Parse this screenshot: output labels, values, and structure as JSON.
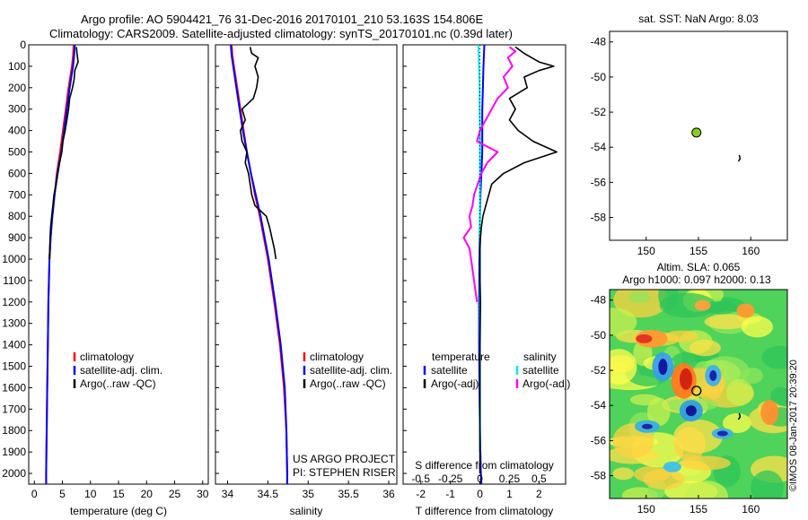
{
  "header": {
    "line1": "Argo profile: AO 5904421_76 31-Dec-2016 20170101_210 53.163S 154.806E",
    "line2": "Climatology: CARS2009. Satellite-adjusted climatology: synTS_20170101.nc (0.39d later)"
  },
  "credit": {
    "project": "US ARGO PROJECT",
    "pi": "PI: STEPHEN RISER",
    "copyright": "©IMOS 08-Jan-2017 20:39:20"
  },
  "colors": {
    "climatology": "#ff0000",
    "satellite": "#0000ff",
    "argo": "#000000",
    "s_satellite": "#00e5e5",
    "s_argo": "#ff00ff",
    "marker_fill": "#88cc22"
  },
  "chart_data": [
    {
      "type": "line",
      "xlabel": "temperature (deg C)",
      "ylabel": "",
      "xlim": [
        -1,
        31
      ],
      "ylim": [
        2050,
        0
      ],
      "xticks": [
        0,
        5,
        10,
        15,
        20,
        25,
        30
      ],
      "yticks": [
        0,
        100,
        200,
        300,
        400,
        500,
        600,
        700,
        800,
        900,
        1000,
        1100,
        1200,
        1300,
        1400,
        1500,
        1600,
        1700,
        1800,
        1900,
        2000
      ],
      "legend": [
        "climatology",
        "satellite-adj. clim.",
        "Argo(..raw -QC)"
      ],
      "legend_position": "lower-middle",
      "series": [
        {
          "name": "climatology",
          "color": "#ff0000",
          "depth": [
            0,
            50,
            100,
            200,
            300,
            400,
            500,
            600,
            700,
            800,
            900,
            1000,
            1200,
            1400,
            1600,
            1800,
            2000,
            2050
          ],
          "values": [
            7.0,
            6.9,
            6.7,
            6.1,
            5.6,
            5.1,
            4.6,
            4.0,
            3.6,
            3.2,
            2.9,
            2.7,
            2.5,
            2.4,
            2.3,
            2.2,
            2.1,
            2.1
          ]
        },
        {
          "name": "satellite-adj. clim.",
          "color": "#0000ff",
          "depth": [
            0,
            50,
            100,
            200,
            300,
            400,
            500,
            600,
            700,
            800,
            900,
            1000,
            1200,
            1400,
            1600,
            1800,
            2000,
            2050
          ],
          "values": [
            7.2,
            7.1,
            6.9,
            6.3,
            5.8,
            5.3,
            4.8,
            4.1,
            3.6,
            3.2,
            2.9,
            2.7,
            2.5,
            2.4,
            2.3,
            2.2,
            2.1,
            2.1
          ]
        },
        {
          "name": "Argo(..raw -QC)",
          "color": "#000000",
          "depth": [
            10,
            40,
            80,
            120,
            160,
            200,
            250,
            300,
            350,
            400,
            450,
            500,
            550,
            600,
            650,
            700,
            750,
            800,
            850,
            900,
            1000
          ],
          "values": [
            7.5,
            7.6,
            7.8,
            7.2,
            7.1,
            6.8,
            6.3,
            6.1,
            5.8,
            5.5,
            5.1,
            4.9,
            4.5,
            4.2,
            3.9,
            3.5,
            3.3,
            3.1,
            2.9,
            2.8,
            2.7
          ]
        }
      ]
    },
    {
      "type": "line",
      "xlabel": "salinity",
      "ylabel": "",
      "xlim": [
        33.85,
        36.1
      ],
      "ylim": [
        2050,
        0
      ],
      "xticks": [
        34,
        34.5,
        35,
        35.5,
        36
      ],
      "legend": [
        "climatology",
        "satellite-adj. clim.",
        "Argo(..raw -QC)"
      ],
      "legend_position": "lower-right",
      "series": [
        {
          "name": "climatology",
          "color": "#ff0000",
          "depth": [
            0,
            50,
            100,
            200,
            300,
            400,
            500,
            600,
            700,
            800,
            900,
            1000,
            1200,
            1400,
            1600,
            1800,
            2000,
            2050
          ],
          "values": [
            34.05,
            34.06,
            34.08,
            34.12,
            34.16,
            34.2,
            34.24,
            34.29,
            34.34,
            34.4,
            34.45,
            34.5,
            34.58,
            34.65,
            34.7,
            34.73,
            34.74,
            34.74
          ]
        },
        {
          "name": "satellite-adj. clim.",
          "color": "#0000ff",
          "depth": [
            0,
            50,
            100,
            200,
            300,
            400,
            500,
            600,
            700,
            800,
            900,
            1000,
            1200,
            1400,
            1600,
            1800,
            2000,
            2050
          ],
          "values": [
            34.04,
            34.05,
            34.07,
            34.11,
            34.15,
            34.19,
            34.24,
            34.29,
            34.35,
            34.41,
            34.46,
            34.51,
            34.59,
            34.66,
            34.71,
            34.73,
            34.74,
            34.74
          ]
        },
        {
          "name": "Argo(..raw -QC)",
          "color": "#000000",
          "depth": [
            10,
            40,
            60,
            100,
            150,
            200,
            250,
            300,
            350,
            400,
            450,
            500,
            550,
            600,
            700,
            750,
            800,
            850,
            900,
            950,
            1000
          ],
          "values": [
            34.28,
            34.3,
            34.38,
            34.34,
            34.38,
            34.36,
            34.32,
            34.18,
            34.22,
            34.16,
            34.18,
            34.24,
            34.22,
            34.26,
            34.3,
            34.34,
            34.48,
            34.52,
            34.55,
            34.58,
            34.6
          ]
        }
      ]
    },
    {
      "type": "line",
      "xlabel": "T difference from climatology",
      "xlabel2": "S difference from climatology",
      "xlim": [
        -2.6,
        2.9
      ],
      "ylim": [
        2050,
        0
      ],
      "xticks": [
        -2,
        -1,
        0,
        1,
        2
      ],
      "xticks_s": [
        "-0.5",
        "-0.25",
        "0",
        "0.25",
        "0.5"
      ],
      "legend_headers": [
        "temperature",
        "salinity"
      ],
      "legend": [
        "satellite",
        "Argo(-adj)",
        "satellite",
        "Argo(-adj)"
      ],
      "series": [
        {
          "name": "temperature satellite",
          "color": "#0000ff",
          "depth": [
            0,
            100,
            200,
            300,
            400,
            500,
            600,
            700,
            800,
            1000,
            1200,
            1400,
            1600,
            1800,
            2000,
            2050
          ],
          "values": [
            0.15,
            0.12,
            0.1,
            0.08,
            0.08,
            0.08,
            0.05,
            0.02,
            0.0,
            -0.02,
            -0.03,
            -0.03,
            -0.02,
            0.0,
            0.03,
            0.05
          ]
        },
        {
          "name": "salinity satellite",
          "color": "#00e5e5",
          "depth": [
            0,
            100,
            200,
            300,
            400,
            500,
            600,
            700,
            800,
            900,
            1000,
            1200,
            1400,
            1600,
            1800,
            1900
          ],
          "values": [
            -0.05,
            -0.03,
            -0.01,
            -0.01,
            0.0,
            0.0,
            0.0,
            0.0,
            0.0,
            0.0,
            0.0,
            0.0,
            0.0,
            0.0,
            0.0,
            0.0
          ]
        },
        {
          "name": "salinity Argo(-adj)",
          "color": "#ff00ff",
          "depth": [
            10,
            30,
            60,
            100,
            150,
            200,
            250,
            300,
            350,
            400,
            450,
            500,
            550,
            600,
            700,
            750,
            800,
            850,
            900,
            950,
            1000,
            1100,
            1200
          ],
          "values": [
            1.0,
            1.2,
            0.95,
            1.1,
            0.8,
            0.95,
            0.6,
            0.4,
            0.2,
            0.0,
            -0.1,
            0.6,
            0.25,
            0.05,
            -0.2,
            -0.25,
            -0.35,
            -0.3,
            -0.55,
            -0.35,
            -0.3,
            -0.2,
            -0.1
          ]
        },
        {
          "name": "temperature Argo(-adj)",
          "color": "#000000",
          "depth": [
            10,
            40,
            80,
            100,
            120,
            150,
            200,
            250,
            300,
            350,
            400,
            450,
            500,
            550,
            600,
            650,
            700,
            750,
            800,
            850,
            900,
            950,
            1000,
            1100,
            1200,
            1400,
            1600,
            1800,
            2000
          ],
          "values": [
            1.2,
            1.5,
            2.0,
            2.5,
            2.0,
            1.5,
            1.6,
            1.0,
            1.2,
            1.0,
            1.3,
            1.8,
            2.6,
            1.5,
            0.8,
            0.4,
            0.3,
            0.2,
            0.1,
            0.05,
            0.02,
            0.0,
            0.0,
            0.0,
            0.02,
            0.0,
            0.0,
            0.0,
            0.0
          ]
        }
      ]
    },
    {
      "type": "scatter",
      "title": "sat. SST: NaN Argo: 8.03",
      "xlim": [
        146.5,
        163.5
      ],
      "ylim": [
        -59.3,
        -47.4
      ],
      "xticks": [
        150,
        155,
        160
      ],
      "yticks": [
        -48,
        -50,
        -52,
        -54,
        -56,
        -58
      ],
      "points": [
        {
          "lon": 154.806,
          "lat": -53.163,
          "marker": "filled-circle"
        },
        {
          "lon": 158.9,
          "lat": -54.6,
          "marker": "track"
        }
      ]
    },
    {
      "type": "heatmap",
      "title": "Altim. SLA: 0.065",
      "subtitle": "Argo h1000: 0.097 h2000: 0.13",
      "xlim": [
        146.5,
        163.5
      ],
      "ylim": [
        -59.3,
        -47.4
      ],
      "xticks": [
        150,
        155,
        160
      ],
      "yticks": [
        -48,
        -50,
        -52,
        -54,
        -56,
        -58
      ],
      "points": [
        {
          "lon": 154.806,
          "lat": -53.163,
          "marker": "open-circle"
        },
        {
          "lon": 158.9,
          "lat": -54.6,
          "marker": "track"
        }
      ]
    }
  ]
}
